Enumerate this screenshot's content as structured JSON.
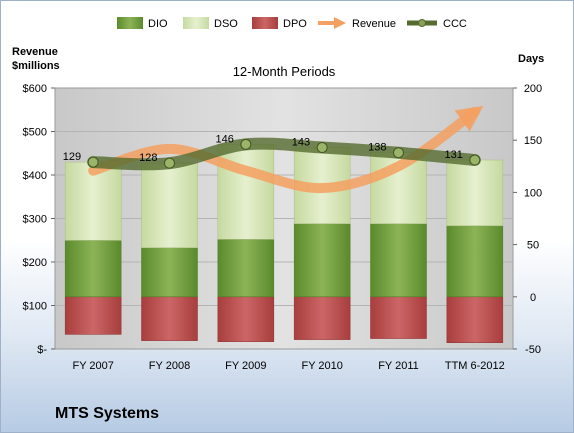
{
  "chart_data": {
    "type": "bar",
    "title": "12-Month Periods",
    "company": "MTS Systems",
    "categories": [
      "FY 2007",
      "FY 2008",
      "FY 2009",
      "FY 2010",
      "FY 2011",
      "TTM 6-2012"
    ],
    "left_axis": {
      "label_line1": "Revenue",
      "label_line2": "$millions",
      "ticks": [
        0,
        100,
        200,
        300,
        400,
        500,
        600
      ],
      "tick_labels": [
        "$-",
        "$100",
        "$200",
        "$300",
        "$400",
        "$500",
        "$600"
      ],
      "ylim": [
        0,
        600
      ]
    },
    "right_axis": {
      "label": "Days",
      "ticks": [
        -50,
        0,
        50,
        100,
        150,
        200
      ],
      "tick_labels": [
        "-50",
        "0",
        "50",
        "100",
        "150",
        "200"
      ],
      "ylim": [
        -50,
        200
      ]
    },
    "stack_series": [
      {
        "name": "DIO",
        "color": "#6f9a3a",
        "values": [
          54,
          47,
          55,
          70,
          70,
          68
        ]
      },
      {
        "name": "DSO",
        "color": "#d6e5b5",
        "values": [
          75,
          81,
          91,
          73,
          68,
          63
        ]
      }
    ],
    "dpo_series": {
      "name": "DPO",
      "color": "#b85050",
      "values": [
        -36,
        -42,
        -43,
        -41,
        -40,
        -44
      ]
    },
    "revenue_series": {
      "name": "Revenue",
      "color": "#f4a060",
      "values": [
        410,
        460,
        410,
        370,
        420,
        545
      ]
    },
    "ccc_series": {
      "name": "CCC",
      "color": "#556b2f",
      "values": [
        129,
        128,
        146,
        143,
        138,
        131
      ],
      "data_labels": [
        "129",
        "128",
        "146",
        "143",
        "138",
        "131"
      ]
    },
    "legend": {
      "position": "top",
      "items": [
        {
          "name": "DIO",
          "kind": "box",
          "color": "#6f9a3a"
        },
        {
          "name": "DSO",
          "kind": "box",
          "color": "#d6e5b5"
        },
        {
          "name": "DPO",
          "kind": "box",
          "color": "#b85050"
        },
        {
          "name": "Revenue",
          "kind": "arrow",
          "color": "#f4a060"
        },
        {
          "name": "CCC",
          "kind": "line",
          "color": "#556b2f"
        }
      ]
    },
    "plot_background": "#d0d0d0",
    "grid": true
  }
}
